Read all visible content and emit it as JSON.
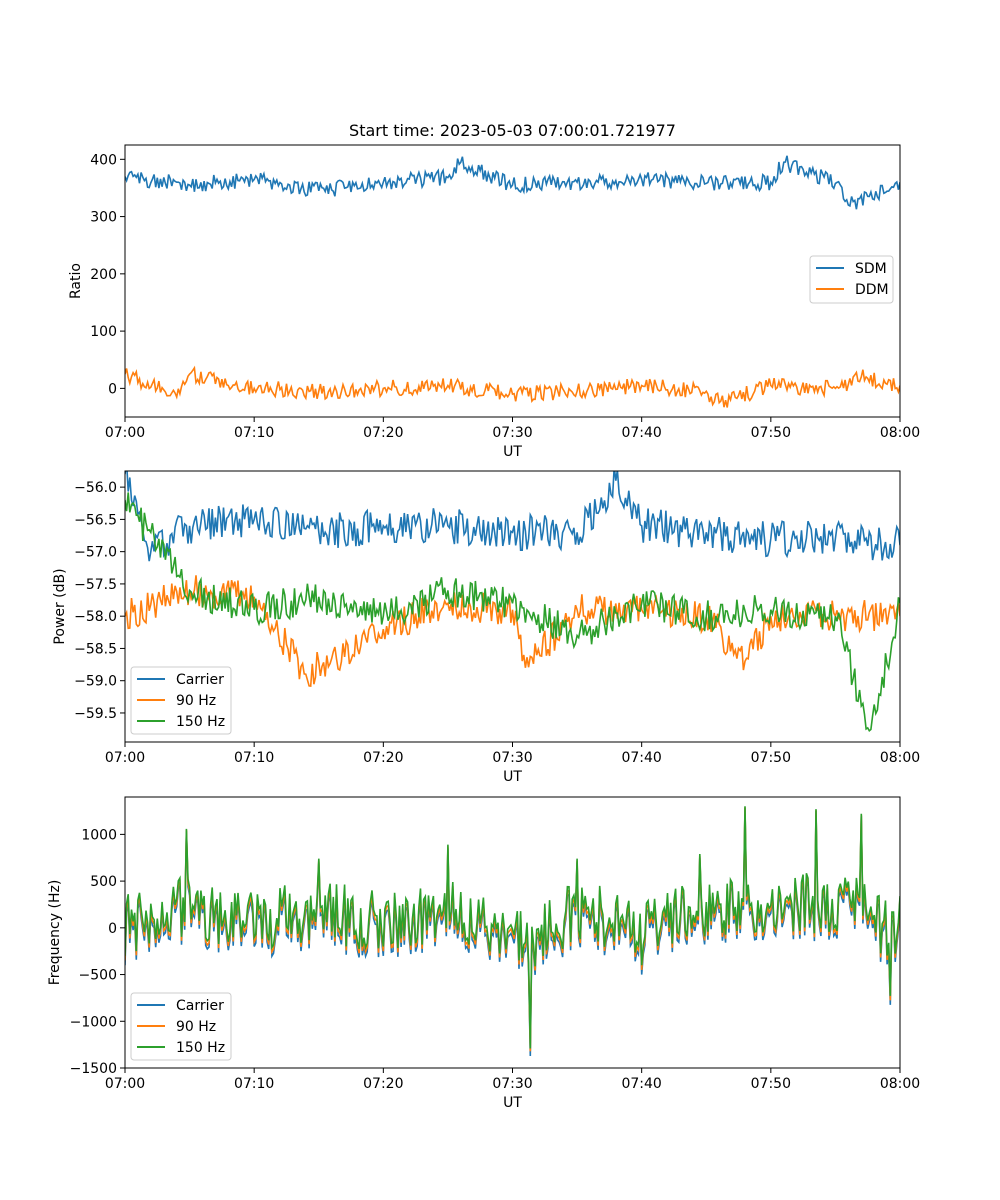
{
  "chart_data": [
    {
      "type": "line",
      "title": "Start time: 2023-05-03 07:00:01.721977",
      "xlabel": "UT",
      "ylabel": "Ratio",
      "xlim": [
        "07:00",
        "08:00"
      ],
      "ylim": [
        -50,
        425
      ],
      "xticks": [
        "07:00",
        "07:10",
        "07:20",
        "07:30",
        "07:40",
        "07:50",
        "08:00"
      ],
      "yticks": [
        "0",
        "100",
        "200",
        "300",
        "400"
      ],
      "grid": false,
      "legend_position": "center-right",
      "series": [
        {
          "name": "SDM",
          "color": "#1f77b4",
          "x_minutes": [
            0,
            5,
            10,
            15,
            20,
            25,
            26,
            30,
            35,
            40,
            45,
            50,
            51,
            55,
            56,
            60
          ],
          "values": [
            370,
            355,
            365,
            345,
            360,
            368,
            395,
            355,
            360,
            365,
            358,
            360,
            395,
            358,
            320,
            360
          ]
        },
        {
          "name": "DDM",
          "color": "#ff7f0e",
          "x_minutes": [
            0,
            4,
            5,
            10,
            15,
            20,
            25,
            30,
            35,
            40,
            45,
            46,
            50,
            55,
            57,
            60
          ],
          "values": [
            25,
            -15,
            25,
            0,
            -5,
            0,
            5,
            -10,
            -5,
            5,
            -5,
            -25,
            5,
            0,
            20,
            5
          ]
        }
      ]
    },
    {
      "type": "line",
      "title": "",
      "xlabel": "UT",
      "ylabel": "Power (dB)",
      "xlim": [
        "07:00",
        "08:00"
      ],
      "ylim": [
        -59.95,
        -55.75
      ],
      "xticks": [
        "07:00",
        "07:10",
        "07:20",
        "07:30",
        "07:40",
        "07:50",
        "08:00"
      ],
      "yticks": [
        "−56.0",
        "−56.5",
        "−57.0",
        "−57.5",
        "−58.0",
        "−58.5",
        "−59.0",
        "−59.5"
      ],
      "grid": false,
      "legend_position": "lower-left",
      "series": [
        {
          "name": "Carrier",
          "color": "#1f77b4",
          "x_minutes": [
            0,
            2,
            5,
            10,
            15,
            20,
            25,
            30,
            35,
            38,
            40,
            45,
            50,
            55,
            60
          ],
          "values": [
            -55.8,
            -57.0,
            -56.6,
            -56.5,
            -56.7,
            -56.6,
            -56.6,
            -56.7,
            -56.7,
            -55.9,
            -56.6,
            -56.7,
            -56.8,
            -56.8,
            -56.9
          ]
        },
        {
          "name": "90 Hz",
          "color": "#ff7f0e",
          "x_minutes": [
            0,
            5,
            10,
            14,
            20,
            25,
            30,
            31,
            35,
            40,
            45,
            48,
            50,
            55,
            60
          ],
          "values": [
            -58.0,
            -57.6,
            -57.7,
            -58.9,
            -58.2,
            -57.8,
            -57.9,
            -58.8,
            -57.9,
            -57.9,
            -58.0,
            -58.7,
            -58.0,
            -58.0,
            -58.0
          ]
        },
        {
          "name": "150 Hz",
          "color": "#2ca02c",
          "x_minutes": [
            0,
            5,
            10,
            15,
            20,
            25,
            30,
            35,
            40,
            45,
            50,
            55,
            57.7,
            60
          ],
          "values": [
            -56.2,
            -57.6,
            -57.9,
            -57.7,
            -58.0,
            -57.6,
            -57.8,
            -58.3,
            -57.8,
            -58.0,
            -57.9,
            -58.0,
            -59.8,
            -57.8
          ]
        }
      ]
    },
    {
      "type": "line",
      "title": "",
      "xlabel": "UT",
      "ylabel": "Frequency (Hz)",
      "xlim": [
        "07:00",
        "08:00"
      ],
      "ylim": [
        -1500,
        1400
      ],
      "xticks": [
        "07:00",
        "07:10",
        "07:20",
        "07:30",
        "07:40",
        "07:50",
        "08:00"
      ],
      "yticks": [
        "−1500",
        "−1000",
        "−500",
        "0",
        "500",
        "1000"
      ],
      "grid": false,
      "legend_position": "lower-left",
      "series": [
        {
          "name": "Carrier",
          "color": "#1f77b4",
          "x_minutes": [
            0,
            4.7,
            10,
            15,
            20,
            25,
            31.4,
            35,
            40,
            44.5,
            48,
            53.5,
            57,
            59.2,
            60
          ],
          "values": [
            -400,
            1050,
            -200,
            700,
            -300,
            850,
            -1380,
            700,
            -500,
            750,
            1280,
            1250,
            1200,
            -900,
            300
          ]
        },
        {
          "name": "90 Hz",
          "color": "#ff7f0e",
          "x_minutes": [
            0,
            4.7,
            10,
            15,
            20,
            25,
            31.4,
            35,
            40,
            44.5,
            48,
            53.5,
            57,
            59.2,
            60
          ],
          "values": [
            -350,
            1060,
            -150,
            720,
            -250,
            870,
            -1330,
            720,
            -450,
            770,
            1290,
            1260,
            1210,
            -850,
            320
          ]
        },
        {
          "name": "150 Hz",
          "color": "#2ca02c",
          "x_minutes": [
            0,
            4.7,
            10,
            15,
            20,
            25,
            31.4,
            35,
            40,
            44.5,
            48,
            53.5,
            57,
            59.2,
            60
          ],
          "values": [
            -300,
            1070,
            -100,
            740,
            -200,
            890,
            -1300,
            740,
            -400,
            790,
            1300,
            1270,
            1220,
            -800,
            340
          ]
        }
      ]
    }
  ]
}
